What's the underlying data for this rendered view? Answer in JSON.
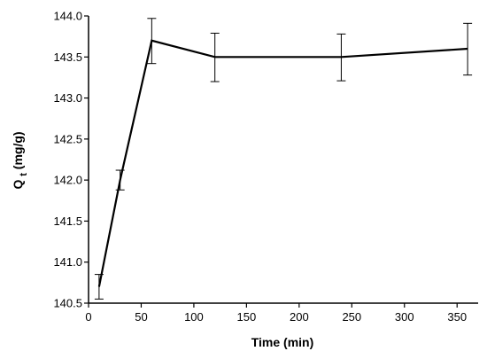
{
  "chart_data": {
    "type": "line",
    "title": "",
    "xlabel": "Time (min)",
    "ylabel": {
      "main": "Q",
      "subscript": "t",
      "unit": " (mg/g)"
    },
    "xlim": [
      0,
      370
    ],
    "ylim": [
      140.5,
      144.0
    ],
    "x_ticks": [
      0,
      50,
      100,
      150,
      200,
      250,
      300,
      350
    ],
    "x_tick_labels": [
      "0",
      "50",
      "100",
      "150",
      "200",
      "250",
      "300",
      "350"
    ],
    "y_ticks": [
      140.5,
      141.0,
      141.5,
      142.0,
      142.5,
      143.0,
      143.5,
      144.0
    ],
    "y_tick_labels": [
      "140.5",
      "141.0",
      "141.5",
      "142.0",
      "142.5",
      "143.0",
      "143.5",
      "144.0"
    ],
    "grid": false,
    "legend": "none",
    "series": [
      {
        "x": [
          10,
          30,
          60,
          120,
          240,
          360
        ],
        "y": [
          140.7,
          142.0,
          143.7,
          143.5,
          143.5,
          143.6
        ],
        "err_low": [
          140.55,
          141.88,
          143.42,
          143.2,
          143.21,
          143.28
        ],
        "err_high": [
          140.85,
          142.12,
          143.97,
          143.79,
          143.78,
          143.91
        ],
        "color": "#000000"
      }
    ]
  }
}
